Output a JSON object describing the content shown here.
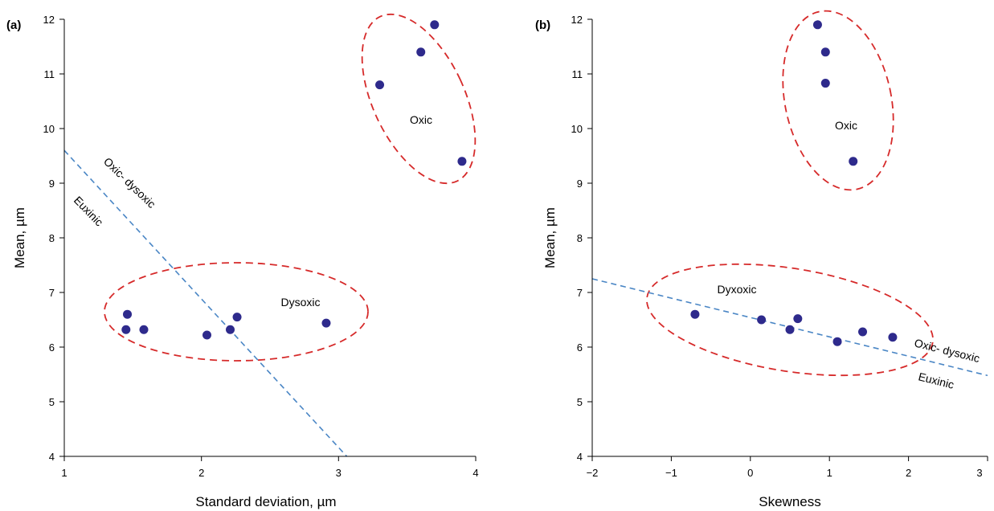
{
  "chart_data": [
    {
      "type": "scatter",
      "panel_label": "(a)",
      "xlabel": "Standard deviation, µm",
      "ylabel": "Mean, µm",
      "xlim": [
        1,
        4
      ],
      "ylim": [
        4,
        12
      ],
      "xticks": [
        "1",
        "2",
        "3",
        "4"
      ],
      "yticks": [
        "4",
        "5",
        "6",
        "7",
        "8",
        "9",
        "10",
        "11",
        "12"
      ],
      "grid": false,
      "point_color": "#2e2a8c",
      "series": [
        {
          "x": [
            1.45,
            1.46,
            1.58,
            2.04,
            2.21,
            2.26,
            2.91,
            3.3,
            3.6,
            3.7,
            3.9
          ],
          "y": [
            6.32,
            6.6,
            6.32,
            6.22,
            6.32,
            6.55,
            6.44,
            10.8,
            11.4,
            11.9,
            9.4
          ]
        }
      ],
      "boundary_line": {
        "x1": 1,
        "y1": 9.6,
        "x2": 3.06,
        "y2": 4.0,
        "color": "#4a86c5",
        "upper_label": "Oxic- dysoxic",
        "lower_label": "Euxinic"
      },
      "regions": [
        {
          "label": "Oxic",
          "color": "#d62a2a"
        },
        {
          "label": "Dysoxic",
          "color": "#d62a2a"
        }
      ]
    },
    {
      "type": "scatter",
      "panel_label": "(b)",
      "xlabel": "Skewness",
      "ylabel": "Mean, µm",
      "xlim": [
        -2,
        3
      ],
      "ylim": [
        4,
        12
      ],
      "xticks": [
        "−2",
        "−1",
        "0",
        "1",
        "2",
        "3"
      ],
      "yticks": [
        "4",
        "5",
        "6",
        "7",
        "8",
        "9",
        "10",
        "11",
        "12"
      ],
      "grid": false,
      "point_color": "#2e2a8c",
      "series": [
        {
          "x": [
            -0.7,
            0.14,
            0.5,
            0.6,
            1.1,
            1.42,
            1.8,
            0.85,
            0.95,
            0.95,
            1.3
          ],
          "y": [
            6.6,
            6.5,
            6.32,
            6.52,
            6.1,
            6.28,
            6.18,
            11.9,
            11.4,
            10.83,
            9.4
          ]
        }
      ],
      "boundary_line": {
        "x1": -2,
        "y1": 7.25,
        "x2": 3,
        "y2": 5.48,
        "color": "#4a86c5",
        "upper_label": "Oxic- dysoxic",
        "lower_label": "Euxinic"
      },
      "regions": [
        {
          "label": "Oxic",
          "color": "#d62a2a"
        },
        {
          "label": "Dyxoxic",
          "color": "#d62a2a"
        }
      ]
    }
  ]
}
